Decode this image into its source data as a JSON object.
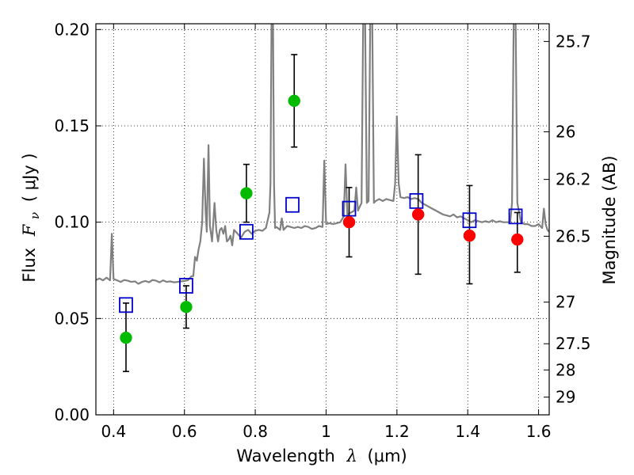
{
  "chart_data": {
    "type": "scatter",
    "xlabel": "Wavelength",
    "xlabel_symbol": "λ",
    "xlabel_unit": "(μm)",
    "ylabel": "Flux",
    "ylabel_symbol": "F",
    "ylabel_subscript": "ν",
    "ylabel_unit": "( μJy )",
    "y2label": "Magnitude (AB)",
    "xlim": [
      0.35,
      1.63
    ],
    "ylim": [
      0.0,
      0.203
    ],
    "grid": true,
    "grid_style": "dotted",
    "x_ticks": [
      {
        "value": 0.4,
        "label": "0.4"
      },
      {
        "value": 0.6,
        "label": "0.6"
      },
      {
        "value": 0.8,
        "label": "0.8"
      },
      {
        "value": 1.0,
        "label": "1"
      },
      {
        "value": 1.2,
        "label": "1.2"
      },
      {
        "value": 1.4,
        "label": "1.4"
      },
      {
        "value": 1.6,
        "label": "1.6"
      }
    ],
    "y_ticks": [
      {
        "value": 0.0,
        "label": "0.00"
      },
      {
        "value": 0.05,
        "label": "0.05"
      },
      {
        "value": 0.1,
        "label": "0.10"
      },
      {
        "value": 0.15,
        "label": "0.15"
      },
      {
        "value": 0.2,
        "label": "0.20"
      }
    ],
    "y2_ticks": [
      {
        "label": "25.7",
        "flux": 0.1938
      },
      {
        "label": "26",
        "flux": 0.1469
      },
      {
        "label": "26.2",
        "flux": 0.1222
      },
      {
        "label": "26.5",
        "flux": 0.0927
      },
      {
        "label": "27",
        "flux": 0.0585
      },
      {
        "label": "27.5",
        "flux": 0.0369
      },
      {
        "label": "28",
        "flux": 0.0233
      },
      {
        "label": "29",
        "flux": 0.0092
      }
    ],
    "series": [
      {
        "kind": "model-spectrum",
        "color": "#808080",
        "points": [
          [
            0.35,
            0.07
          ],
          [
            0.36,
            0.0708
          ],
          [
            0.37,
            0.0698
          ],
          [
            0.38,
            0.0712
          ],
          [
            0.385,
            0.0705
          ],
          [
            0.39,
            0.0698
          ],
          [
            0.395,
            0.094
          ],
          [
            0.4,
            0.0705
          ],
          [
            0.41,
            0.0698
          ],
          [
            0.42,
            0.069
          ],
          [
            0.43,
            0.07
          ],
          [
            0.44,
            0.0696
          ],
          [
            0.45,
            0.069
          ],
          [
            0.46,
            0.0693
          ],
          [
            0.47,
            0.068
          ],
          [
            0.48,
            0.069
          ],
          [
            0.49,
            0.0695
          ],
          [
            0.5,
            0.0688
          ],
          [
            0.51,
            0.07
          ],
          [
            0.52,
            0.0696
          ],
          [
            0.53,
            0.0688
          ],
          [
            0.54,
            0.0698
          ],
          [
            0.55,
            0.069
          ],
          [
            0.56,
            0.0693
          ],
          [
            0.57,
            0.0688
          ],
          [
            0.58,
            0.069
          ],
          [
            0.59,
            0.0693
          ],
          [
            0.6,
            0.0695
          ],
          [
            0.61,
            0.0699
          ],
          [
            0.62,
            0.072
          ],
          [
            0.625,
            0.072
          ],
          [
            0.63,
            0.082
          ],
          [
            0.635,
            0.08
          ],
          [
            0.64,
            0.086
          ],
          [
            0.645,
            0.09
          ],
          [
            0.65,
            0.1
          ],
          [
            0.655,
            0.133
          ],
          [
            0.66,
            0.105
          ],
          [
            0.663,
            0.095
          ],
          [
            0.668,
            0.14
          ],
          [
            0.672,
            0.098
          ],
          [
            0.678,
            0.09
          ],
          [
            0.685,
            0.11
          ],
          [
            0.69,
            0.096
          ],
          [
            0.695,
            0.09
          ],
          [
            0.7,
            0.096
          ],
          [
            0.705,
            0.097
          ],
          [
            0.71,
            0.094
          ],
          [
            0.715,
            0.098
          ],
          [
            0.72,
            0.09
          ],
          [
            0.725,
            0.091
          ],
          [
            0.73,
            0.093
          ],
          [
            0.735,
            0.088
          ],
          [
            0.74,
            0.096
          ],
          [
            0.75,
            0.094
          ],
          [
            0.76,
            0.092
          ],
          [
            0.77,
            0.095
          ],
          [
            0.78,
            0.096
          ],
          [
            0.79,
            0.094
          ],
          [
            0.8,
            0.0955
          ],
          [
            0.81,
            0.096
          ],
          [
            0.82,
            0.0955
          ],
          [
            0.83,
            0.097
          ],
          [
            0.84,
            0.105
          ],
          [
            0.843,
            0.12
          ],
          [
            0.846,
            0.21
          ],
          [
            0.85,
            0.21
          ],
          [
            0.853,
            0.12
          ],
          [
            0.856,
            0.097
          ],
          [
            0.86,
            0.0975
          ],
          [
            0.87,
            0.096
          ],
          [
            0.875,
            0.102
          ],
          [
            0.88,
            0.096
          ],
          [
            0.89,
            0.098
          ],
          [
            0.9,
            0.0975
          ],
          [
            0.91,
            0.097
          ],
          [
            0.92,
            0.0975
          ],
          [
            0.93,
            0.097
          ],
          [
            0.94,
            0.098
          ],
          [
            0.95,
            0.0975
          ],
          [
            0.96,
            0.0965
          ],
          [
            0.97,
            0.097
          ],
          [
            0.98,
            0.098
          ],
          [
            0.99,
            0.0975
          ],
          [
            0.995,
            0.132
          ],
          [
            1.0,
            0.099
          ],
          [
            1.01,
            0.0995
          ],
          [
            1.02,
            0.099
          ],
          [
            1.03,
            0.0995
          ],
          [
            1.04,
            0.1
          ],
          [
            1.05,
            0.103
          ],
          [
            1.055,
            0.13
          ],
          [
            1.06,
            0.104
          ],
          [
            1.07,
            0.105
          ],
          [
            1.08,
            0.106
          ],
          [
            1.085,
            0.118
          ],
          [
            1.09,
            0.106
          ],
          [
            1.095,
            0.108
          ],
          [
            1.1,
            0.11
          ],
          [
            1.105,
            0.21
          ],
          [
            1.11,
            0.21
          ],
          [
            1.115,
            0.11
          ],
          [
            1.12,
            0.111
          ],
          [
            1.125,
            0.21
          ],
          [
            1.13,
            0.21
          ],
          [
            1.135,
            0.11
          ],
          [
            1.14,
            0.111
          ],
          [
            1.15,
            0.112
          ],
          [
            1.16,
            0.111
          ],
          [
            1.17,
            0.112
          ],
          [
            1.18,
            0.1115
          ],
          [
            1.19,
            0.111
          ],
          [
            1.195,
            0.12
          ],
          [
            1.2,
            0.155
          ],
          [
            1.205,
            0.12
          ],
          [
            1.21,
            0.113
          ],
          [
            1.22,
            0.1125
          ],
          [
            1.23,
            0.113
          ],
          [
            1.24,
            0.112
          ],
          [
            1.25,
            0.1125
          ],
          [
            1.26,
            0.112
          ],
          [
            1.27,
            0.11
          ],
          [
            1.28,
            0.109
          ],
          [
            1.29,
            0.108
          ],
          [
            1.3,
            0.107
          ],
          [
            1.31,
            0.106
          ],
          [
            1.32,
            0.105
          ],
          [
            1.33,
            0.104
          ],
          [
            1.34,
            0.1035
          ],
          [
            1.35,
            0.103
          ],
          [
            1.36,
            0.104
          ],
          [
            1.37,
            0.1025
          ],
          [
            1.38,
            0.103
          ],
          [
            1.39,
            0.102
          ],
          [
            1.4,
            0.101
          ],
          [
            1.41,
            0.1
          ],
          [
            1.42,
            0.101
          ],
          [
            1.43,
            0.1005
          ],
          [
            1.44,
            0.1
          ],
          [
            1.45,
            0.1005
          ],
          [
            1.46,
            0.1
          ],
          [
            1.47,
            0.101
          ],
          [
            1.48,
            0.1
          ],
          [
            1.49,
            0.1005
          ],
          [
            1.5,
            0.1
          ],
          [
            1.51,
            0.1
          ],
          [
            1.52,
            0.1
          ],
          [
            1.525,
            0.11
          ],
          [
            1.53,
            0.21
          ],
          [
            1.535,
            0.21
          ],
          [
            1.54,
            0.11
          ],
          [
            1.55,
            0.1
          ],
          [
            1.56,
            0.099
          ],
          [
            1.57,
            0.099
          ],
          [
            1.58,
            0.098
          ],
          [
            1.59,
            0.098
          ],
          [
            1.6,
            0.099
          ],
          [
            1.61,
            0.097
          ],
          [
            1.615,
            0.107
          ],
          [
            1.62,
            0.099
          ],
          [
            1.625,
            0.096
          ],
          [
            1.63,
            0.095
          ]
        ]
      },
      {
        "kind": "model-photometry",
        "marker": "open-square",
        "color": "#0000cc",
        "x": [
          0.435,
          0.605,
          0.775,
          0.905,
          1.065,
          1.255,
          1.405,
          1.535
        ],
        "y": [
          0.057,
          0.067,
          0.095,
          0.109,
          0.107,
          0.111,
          0.101,
          0.103
        ]
      },
      {
        "kind": "observed-photometry",
        "marker": "filled-circle",
        "color": "#00bb00",
        "x": [
          0.435,
          0.605,
          0.775,
          0.91
        ],
        "y": [
          0.04,
          0.056,
          0.115,
          0.163
        ],
        "err_low": [
          0.0225,
          0.045,
          0.1,
          0.139
        ],
        "err_high": [
          0.058,
          0.067,
          0.13,
          0.187
        ]
      },
      {
        "kind": "observed-photometry",
        "marker": "filled-circle",
        "color": "#ff0000",
        "x": [
          1.065,
          1.26,
          1.405,
          1.54
        ],
        "y": [
          0.1,
          0.104,
          0.093,
          0.091
        ],
        "err_low": [
          0.082,
          0.073,
          0.068,
          0.074
        ],
        "err_high": [
          0.118,
          0.135,
          0.119,
          0.105
        ]
      }
    ]
  }
}
